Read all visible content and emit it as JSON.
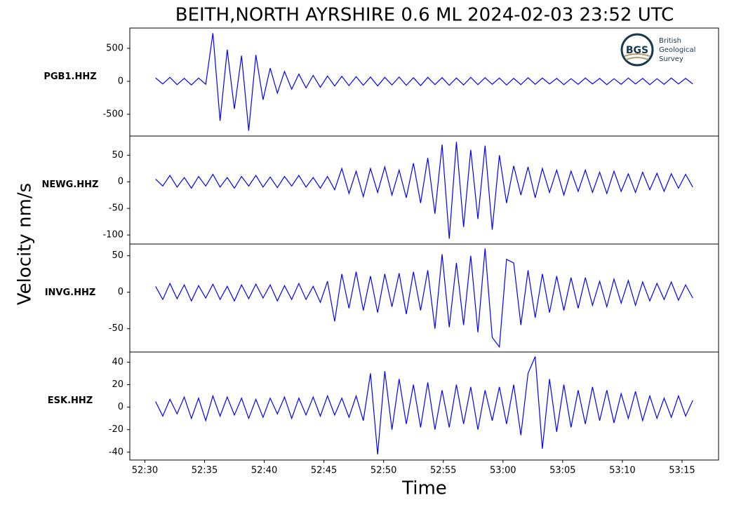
{
  "chart_data": {
    "type": "line",
    "title": "BEITH,NORTH AYRSHIRE 0.6 ML   2024-02-03 23:52 UTC",
    "x_label": "Time",
    "y_label": "Velocity nm/s",
    "logo": {
      "acronym": "BGS",
      "name_lines": [
        "British",
        "Geological",
        "Survey"
      ]
    },
    "xlim": [
      52.479,
      53.301
    ],
    "xticks": [
      {
        "value": 52.5,
        "label": "52:30"
      },
      {
        "value": 52.58333,
        "label": "52:35"
      },
      {
        "value": 52.66667,
        "label": "52:40"
      },
      {
        "value": 52.75,
        "label": "52:45"
      },
      {
        "value": 52.83333,
        "label": "52:50"
      },
      {
        "value": 52.91667,
        "label": "52:55"
      },
      {
        "value": 53,
        "label": "53:00"
      },
      {
        "value": 53.08333,
        "label": "53:05"
      },
      {
        "value": 53.16667,
        "label": "53:10"
      },
      {
        "value": 53.25,
        "label": "53:15"
      }
    ],
    "x": [
      52.515,
      52.525,
      52.535,
      52.545,
      52.555,
      52.565,
      52.575,
      52.585,
      52.595,
      52.605,
      52.615,
      52.625,
      52.635,
      52.645,
      52.655,
      52.665,
      52.675,
      52.685,
      52.695,
      52.705,
      52.715,
      52.725,
      52.735,
      52.745,
      52.755,
      52.765,
      52.775,
      52.785,
      52.795,
      52.805,
      52.815,
      52.825,
      52.835,
      52.845,
      52.855,
      52.865,
      52.875,
      52.885,
      52.895,
      52.905,
      52.915,
      52.925,
      52.935,
      52.945,
      52.955,
      52.965,
      52.975,
      52.985,
      52.995,
      53.005,
      53.015,
      53.025,
      53.035,
      53.045,
      53.055,
      53.065,
      53.075,
      53.085,
      53.095,
      53.105,
      53.115,
      53.125,
      53.135,
      53.145,
      53.155,
      53.165,
      53.175,
      53.185,
      53.195,
      53.205,
      53.215,
      53.225,
      53.235,
      53.245,
      53.255,
      53.265
    ],
    "panels": [
      {
        "label": "PGB1.HHZ",
        "color": "#0000ff",
        "ylim": [
          -830,
          808
        ],
        "yticks": [
          500,
          0,
          -500
        ],
        "values": [
          50,
          -40,
          60,
          -50,
          45,
          -55,
          50,
          -45,
          730,
          -600,
          480,
          -420,
          390,
          -750,
          400,
          -280,
          200,
          -180,
          150,
          -120,
          110,
          -100,
          90,
          -90,
          80,
          -70,
          75,
          -65,
          70,
          -60,
          65,
          -70,
          60,
          -55,
          65,
          -60,
          55,
          -65,
          60,
          -50,
          55,
          -60,
          50,
          -55,
          60,
          -50,
          55,
          -45,
          50,
          -55,
          45,
          -50,
          55,
          -45,
          50,
          -40,
          45,
          -50,
          40,
          -45,
          50,
          -40,
          45,
          -50,
          40,
          -45,
          50,
          -40,
          45,
          -50,
          40,
          -45,
          50,
          -40,
          45,
          -40
        ]
      },
      {
        "label": "NEWG.HHZ",
        "color": "#0000ff",
        "ylim": [
          -117,
          86
        ],
        "yticks": [
          50,
          0,
          -50,
          -100
        ],
        "values": [
          5,
          -8,
          12,
          -10,
          8,
          -12,
          10,
          -8,
          14,
          -10,
          8,
          -12,
          10,
          -8,
          12,
          -10,
          9,
          -11,
          10,
          -8,
          12,
          -10,
          8,
          -12,
          10,
          -15,
          25,
          -22,
          20,
          -28,
          25,
          -20,
          28,
          -25,
          22,
          -30,
          35,
          -40,
          45,
          -60,
          70,
          -107,
          75,
          -85,
          60,
          -70,
          68,
          -90,
          50,
          -40,
          30,
          -25,
          28,
          -30,
          25,
          -20,
          22,
          -25,
          20,
          -18,
          22,
          -20,
          18,
          -22,
          20,
          -18,
          15,
          -20,
          18,
          -15,
          16,
          -18,
          15,
          -12,
          14,
          -10
        ]
      },
      {
        "label": "INVG.HHZ",
        "color": "#0000ff",
        "ylim": [
          -82,
          66
        ],
        "yticks": [
          50,
          0,
          -50
        ],
        "values": [
          8,
          -10,
          12,
          -9,
          10,
          -12,
          9,
          -8,
          11,
          -10,
          8,
          -12,
          10,
          -9,
          11,
          -8,
          10,
          -12,
          9,
          -10,
          12,
          -10,
          8,
          -14,
          15,
          -40,
          25,
          -22,
          28,
          -25,
          22,
          -28,
          25,
          -20,
          26,
          -30,
          28,
          -25,
          30,
          -50,
          52,
          -48,
          40,
          -45,
          50,
          -55,
          60,
          -62,
          -75,
          45,
          40,
          -45,
          30,
          -35,
          25,
          -28,
          22,
          -25,
          20,
          -22,
          20,
          -18,
          15,
          -20,
          18,
          -15,
          16,
          -18,
          14,
          -12,
          12,
          -10,
          14,
          -11,
          10,
          -8
        ]
      },
      {
        "label": "ESK.HHZ",
        "color": "#0000ff",
        "ylim": [
          -47,
          49
        ],
        "yticks": [
          40,
          20,
          0,
          -20,
          -40
        ],
        "values": [
          5,
          -8,
          7,
          -6,
          9,
          -10,
          8,
          -12,
          10,
          -8,
          9,
          -7,
          8,
          -10,
          7,
          -9,
          8,
          -6,
          9,
          -10,
          8,
          -7,
          9,
          -8,
          10,
          -7,
          8,
          -9,
          10,
          -12,
          30,
          -42,
          32,
          -20,
          25,
          -15,
          20,
          -18,
          22,
          -20,
          15,
          -18,
          20,
          -15,
          18,
          -20,
          15,
          -12,
          18,
          -15,
          20,
          -25,
          30,
          45,
          -37,
          25,
          -22,
          20,
          -18,
          15,
          -15,
          18,
          -12,
          15,
          -14,
          12,
          -10,
          14,
          -12,
          10,
          -10,
          8,
          -9,
          10,
          -8,
          6
        ]
      }
    ]
  }
}
